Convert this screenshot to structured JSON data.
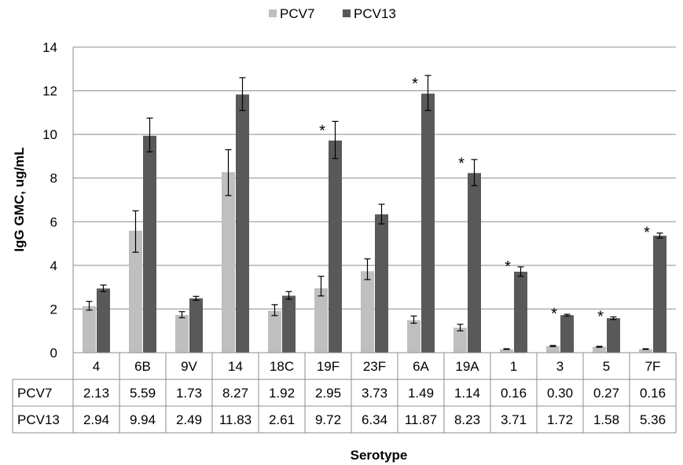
{
  "chart_data": {
    "type": "bar",
    "xlabel": "Serotype",
    "ylabel": "IgG GMC,  ug/mL",
    "ylim": [
      0,
      14
    ],
    "yticks": [
      0,
      2,
      4,
      6,
      8,
      10,
      12,
      14
    ],
    "grid": true,
    "legend_position": "top",
    "categories": [
      "4",
      "6B",
      "9V",
      "14",
      "18C",
      "19F",
      "23F",
      "6A",
      "19A",
      "1",
      "3",
      "5",
      "7F"
    ],
    "series": [
      {
        "name": "PCV7",
        "color": "#bfbfbf",
        "values": [
          2.13,
          5.59,
          1.73,
          8.27,
          1.92,
          2.95,
          3.73,
          1.49,
          1.14,
          0.16,
          0.3,
          0.27,
          0.16
        ],
        "labels": [
          "2.13",
          "5.59",
          "1.73",
          "8.27",
          "1.92",
          "2.95",
          "3.73",
          "1.49",
          "1.14",
          "0.16",
          "0.30",
          "0.27",
          "0.16"
        ],
        "err_low": [
          1.95,
          4.6,
          1.6,
          7.2,
          1.7,
          2.6,
          3.35,
          1.35,
          1.0,
          0.15,
          0.28,
          0.25,
          0.15
        ],
        "err_high": [
          2.35,
          6.5,
          1.88,
          9.3,
          2.2,
          3.5,
          4.3,
          1.68,
          1.3,
          0.18,
          0.33,
          0.29,
          0.18
        ]
      },
      {
        "name": "PCV13",
        "color": "#595959",
        "values": [
          2.94,
          9.94,
          2.49,
          11.83,
          2.61,
          9.72,
          6.34,
          11.87,
          8.23,
          3.71,
          1.72,
          1.58,
          5.36
        ],
        "labels": [
          "2.94",
          "9.94",
          "2.49",
          "11.83",
          "2.61",
          "9.72",
          "6.34",
          "11.87",
          "8.23",
          "3.71",
          "1.72",
          "1.58",
          "5.36"
        ],
        "err_low": [
          2.8,
          9.2,
          2.4,
          11.1,
          2.45,
          8.9,
          5.9,
          11.1,
          7.65,
          3.5,
          1.68,
          1.52,
          5.25
        ],
        "err_high": [
          3.1,
          10.75,
          2.58,
          12.6,
          2.8,
          10.6,
          6.8,
          12.7,
          8.85,
          3.93,
          1.76,
          1.64,
          5.48
        ]
      }
    ],
    "significance_marker": "*",
    "significant": [
      "19F",
      "6A",
      "19A",
      "1",
      "3",
      "5",
      "7F"
    ]
  }
}
